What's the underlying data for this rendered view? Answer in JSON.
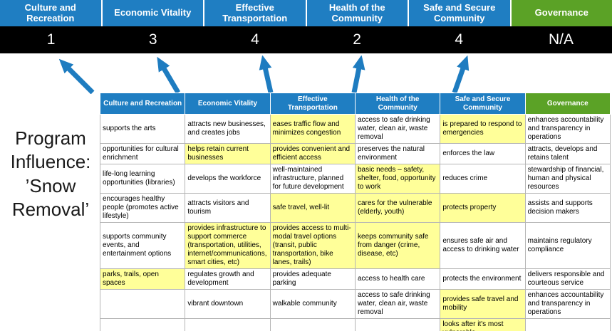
{
  "title": "Program Influence: ’Snow Removal’",
  "colors": {
    "blue": "#1f7ec2",
    "green": "#5ba226",
    "score_band": "#000000",
    "highlight": "#ffff99",
    "arrow": "#1e7cc0"
  },
  "summary": {
    "columns": [
      {
        "label": "Culture and Recreation",
        "score": "1",
        "color": "blue"
      },
      {
        "label": "Economic Vitality",
        "score": "3",
        "color": "blue"
      },
      {
        "label": "Effective Transportation",
        "score": "4",
        "color": "blue"
      },
      {
        "label": "Health of the Community",
        "score": "2",
        "color": "blue"
      },
      {
        "label": "Safe and Secure Community",
        "score": "4",
        "color": "blue"
      },
      {
        "label": "Governance",
        "score": "N/A",
        "color": "green"
      }
    ]
  },
  "matrix": {
    "rows": [
      [
        {
          "text": "supports the arts",
          "hl": false
        },
        {
          "text": "attracts new businesses, and creates jobs",
          "hl": false
        },
        {
          "text": "eases traffic flow and minimizes congestion",
          "hl": true
        },
        {
          "text": "access to safe drinking water, clean air, waste removal",
          "hl": false
        },
        {
          "text": "is prepared to respond to emergencies",
          "hl": true
        },
        {
          "text": "enhances accountability and transparency in operations",
          "hl": false
        }
      ],
      [
        {
          "text": "opportunities for cultural enrichment",
          "hl": false
        },
        {
          "text": "helps retain current businesses",
          "hl": true
        },
        {
          "text": "provides convenient and efficient access",
          "hl": true
        },
        {
          "text": "preserves the natural environment",
          "hl": false
        },
        {
          "text": "enforces the law",
          "hl": false
        },
        {
          "text": "attracts, develops and retains talent",
          "hl": false
        }
      ],
      [
        {
          "text": "life-long learning opportunities (libraries)",
          "hl": false
        },
        {
          "text": "develops the workforce",
          "hl": false
        },
        {
          "text": "well-maintained infrastructure, planned for future development",
          "hl": false
        },
        {
          "text": "basic needs – safety, shelter, food, opportunity to work",
          "hl": true
        },
        {
          "text": "reduces crime",
          "hl": false
        },
        {
          "text": "stewardship of financial, human and physical resources",
          "hl": false
        }
      ],
      [
        {
          "text": "encourages healthy people (promotes active lifestyle)",
          "hl": false
        },
        {
          "text": "attracts visitors and tourism",
          "hl": false
        },
        {
          "text": "safe travel, well-lit",
          "hl": true
        },
        {
          "text": "cares for the vulnerable (elderly, youth)",
          "hl": true
        },
        {
          "text": "protects property",
          "hl": true
        },
        {
          "text": "assists and supports decision makers",
          "hl": false
        }
      ],
      [
        {
          "text": "supports community events, and entertainment options",
          "hl": false
        },
        {
          "text": "provides infrastructure to support commerce (transportation, utilities, internet/communications, smart cities, etc)",
          "hl": true
        },
        {
          "text": "provides access to multi-modal travel options (transit, public transportation, bike lanes, trails)",
          "hl": true
        },
        {
          "text": "keeps community safe from danger (crime, disease, etc)",
          "hl": true
        },
        {
          "text": "ensures safe air and access to drinking water",
          "hl": false
        },
        {
          "text": "maintains regulatory compliance",
          "hl": false
        }
      ],
      [
        {
          "text": "parks, trails, open spaces",
          "hl": true
        },
        {
          "text": "regulates growth and development",
          "hl": false
        },
        {
          "text": "provides adequate parking",
          "hl": false
        },
        {
          "text": "access to health care",
          "hl": false
        },
        {
          "text": "protects the environment",
          "hl": false
        },
        {
          "text": "delivers responsible and courteous service",
          "hl": false
        }
      ],
      [
        {
          "text": "",
          "hl": false
        },
        {
          "text": "vibrant downtown",
          "hl": false
        },
        {
          "text": "walkable community",
          "hl": false
        },
        {
          "text": "access to safe drinking water, clean air, waste removal",
          "hl": false
        },
        {
          "text": "provides safe travel and mobility",
          "hl": true
        },
        {
          "text": "enhances accountability and transparency in operations",
          "hl": false
        }
      ],
      [
        {
          "text": "",
          "hl": false
        },
        {
          "text": "",
          "hl": false
        },
        {
          "text": "",
          "hl": false
        },
        {
          "text": "",
          "hl": false
        },
        {
          "text": "looks after it's most vulnerable",
          "hl": true
        },
        {
          "text": "",
          "hl": false
        }
      ]
    ]
  }
}
